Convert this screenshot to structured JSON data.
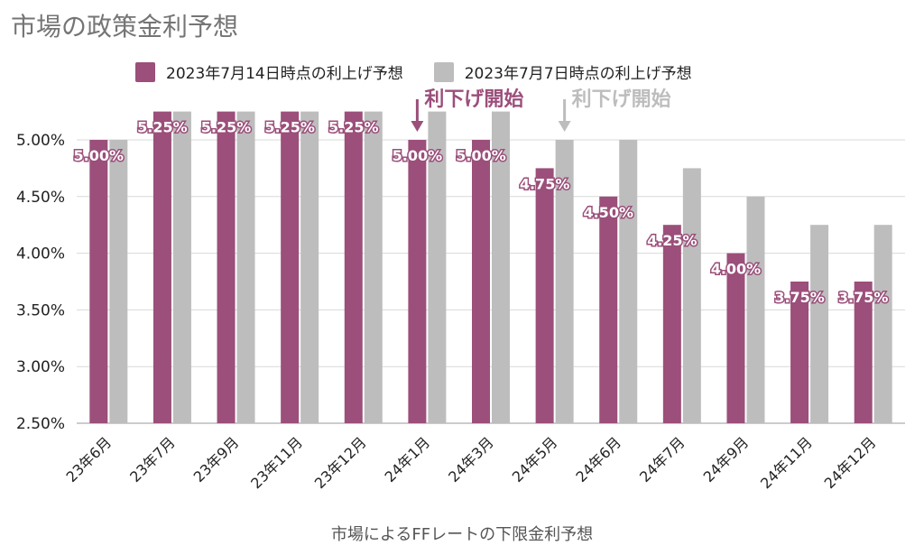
{
  "title": "市場の政策金利予想",
  "colors": {
    "series1": "#9B4F7A",
    "series2": "#BDBDBD",
    "grid": "#D9D9D9",
    "annotation1": "#9B4F7A",
    "annotation2": "#BDBDBD"
  },
  "chart_data": {
    "type": "bar",
    "title": "市場の政策金利予想",
    "xlabel": "市場によるFFレートの下限金利予想",
    "ylabel": "",
    "ylim": [
      2.5,
      5.25
    ],
    "yticks": [
      "2.50%",
      "3.00%",
      "3.50%",
      "4.00%",
      "4.50%",
      "5.00%"
    ],
    "legend_position": "top",
    "categories": [
      "23年6月",
      "23年7月",
      "23年9月",
      "23年11月",
      "23年12月",
      "24年1月",
      "24年3月",
      "24年5月",
      "24年6月",
      "24年7月",
      "24年9月",
      "24年11月",
      "24年12月"
    ],
    "series": [
      {
        "name": "2023年7月14日時点の利上げ予想",
        "values": [
          5.0,
          5.25,
          5.25,
          5.25,
          5.25,
          5.0,
          5.0,
          4.75,
          4.5,
          4.25,
          4.0,
          3.75,
          3.75
        ],
        "data_labels": [
          "5.00%",
          "5.25%",
          "5.25%",
          "5.25%",
          "5.25%",
          "5.00%",
          "5.00%",
          "4.75%",
          "4.50%",
          "4.25%",
          "4.00%",
          "3.75%",
          "3.75%"
        ]
      },
      {
        "name": "2023年7月7日時点の利上げ予想",
        "values": [
          5.0,
          5.25,
          5.25,
          5.25,
          5.25,
          5.25,
          5.25,
          5.0,
          5.0,
          4.75,
          4.5,
          4.25,
          4.25
        ]
      }
    ],
    "annotations": [
      {
        "text": "利下げ開始",
        "category": "24年1月",
        "series": 0
      },
      {
        "text": "利下げ開始",
        "category": "24年5月",
        "series": 1
      }
    ]
  }
}
